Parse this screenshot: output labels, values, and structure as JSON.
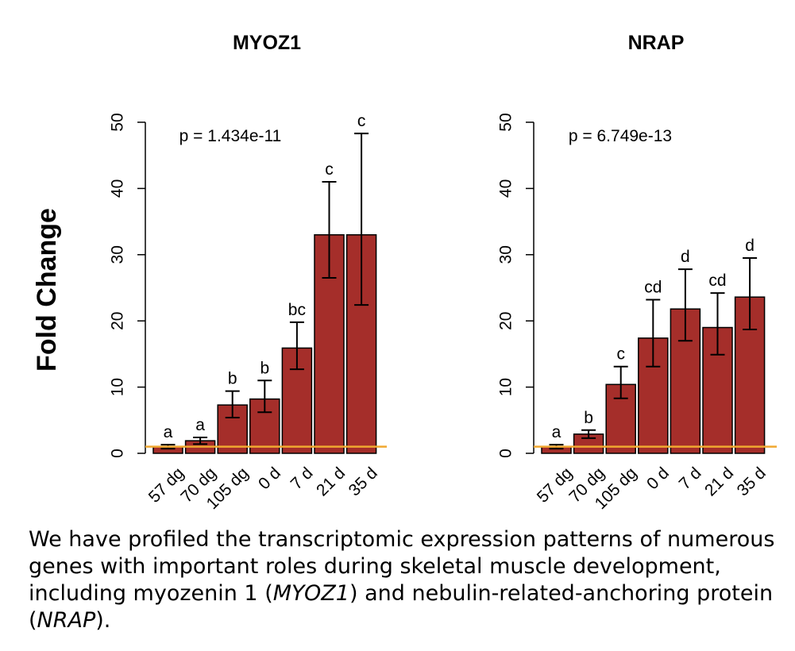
{
  "ylabel": "Fold Change",
  "chart_data": [
    {
      "type": "bar",
      "title": "MYOZ1",
      "annotation": "p = 1.434e-11",
      "categories": [
        "57 dg",
        "70 dg",
        "105 dg",
        "0 d",
        "7 d",
        "21 d",
        "35 d"
      ],
      "values": [
        1.0,
        1.9,
        7.3,
        8.2,
        15.9,
        33.0,
        33.0
      ],
      "error_low": [
        0.7,
        1.4,
        5.4,
        6.2,
        12.7,
        26.5,
        22.4
      ],
      "error_high": [
        1.3,
        2.4,
        9.4,
        11.0,
        19.8,
        41.0,
        48.3
      ],
      "letters": [
        "a",
        "a",
        "b",
        "b",
        "bc",
        "c",
        "c"
      ],
      "ylim": [
        0,
        50
      ],
      "yticks": [
        0,
        10,
        20,
        30,
        40,
        50
      ],
      "reference_line": 1,
      "bar_color": "#a52e2a",
      "reference_color": "#f0a830"
    },
    {
      "type": "bar",
      "title": "NRAP",
      "annotation": "p = 6.749e-13",
      "categories": [
        "57 dg",
        "70 dg",
        "105 dg",
        "0 d",
        "7 d",
        "21 d",
        "35 d"
      ],
      "values": [
        1.0,
        2.9,
        10.4,
        17.4,
        21.8,
        19.0,
        23.6
      ],
      "error_low": [
        0.7,
        2.3,
        8.3,
        13.1,
        17.0,
        14.9,
        18.7
      ],
      "error_high": [
        1.3,
        3.5,
        13.1,
        23.2,
        27.8,
        24.2,
        29.5
      ],
      "letters": [
        "a",
        "b",
        "c",
        "cd",
        "d",
        "cd",
        "d"
      ],
      "ylim": [
        0,
        50
      ],
      "yticks": [
        0,
        10,
        20,
        30,
        40,
        50
      ],
      "reference_line": 1,
      "bar_color": "#a52e2a",
      "reference_color": "#f0a830"
    }
  ],
  "caption": {
    "part1": "We have profiled the transcriptomic expression patterns of numerous genes with important roles during skeletal muscle development, including myozenin 1 (",
    "gene1": "MYOZ1",
    "part2": ") and nebulin-related-anchoring protein (",
    "gene2": "NRAP",
    "part3": ")."
  }
}
